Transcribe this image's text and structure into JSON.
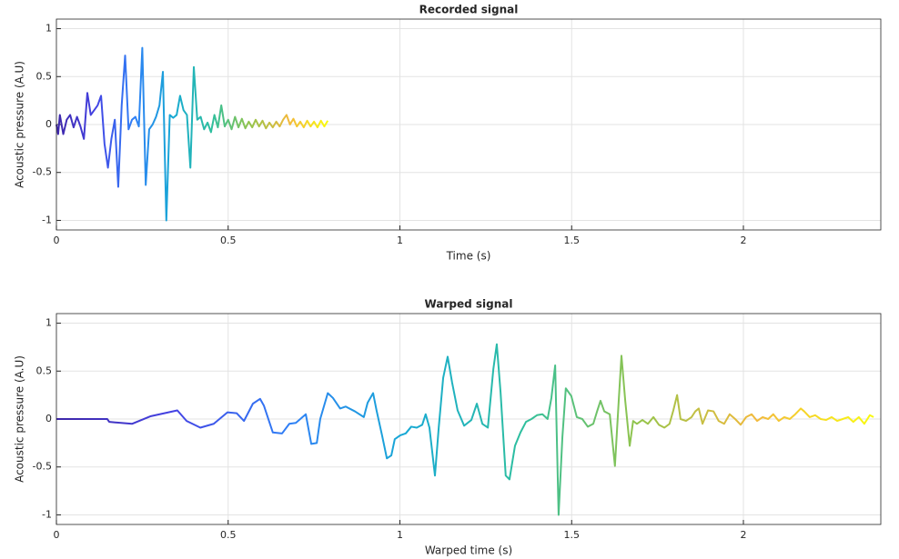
{
  "chart_data": [
    {
      "type": "line",
      "title": "Recorded signal",
      "xlabel": "Time (s)",
      "ylabel": "Acoustic pressure (A.U)",
      "xlim": [
        0,
        2.4
      ],
      "xticks": [
        0,
        0.5,
        1,
        1.5,
        2
      ],
      "ylim": [
        -1.1,
        1.1
      ],
      "yticks": [
        -1,
        -0.5,
        0,
        0.5,
        1
      ],
      "grid": true,
      "colormap": [
        "#3e26a8",
        "#4443e4",
        "#2f80f6",
        "#17a9d4",
        "#2ebf9e",
        "#95c44a",
        "#f2b93b",
        "#f9fb0e"
      ],
      "x": [
        0,
        0.005,
        0.01,
        0.02,
        0.03,
        0.04,
        0.05,
        0.06,
        0.07,
        0.08,
        0.09,
        0.1,
        0.11,
        0.12,
        0.13,
        0.14,
        0.15,
        0.16,
        0.17,
        0.18,
        0.19,
        0.2,
        0.21,
        0.22,
        0.23,
        0.24,
        0.25,
        0.26,
        0.27,
        0.28,
        0.29,
        0.3,
        0.31,
        0.32,
        0.33,
        0.34,
        0.35,
        0.36,
        0.37,
        0.38,
        0.39,
        0.4,
        0.41,
        0.42,
        0.43,
        0.44,
        0.45,
        0.46,
        0.47,
        0.48,
        0.49,
        0.5,
        0.51,
        0.52,
        0.53,
        0.54,
        0.55,
        0.56,
        0.57,
        0.58,
        0.59,
        0.6,
        0.61,
        0.62,
        0.63,
        0.64,
        0.65,
        0.66,
        0.67,
        0.68,
        0.69,
        0.7,
        0.71,
        0.72,
        0.73,
        0.74,
        0.75,
        0.76,
        0.77,
        0.78,
        0.79
      ],
      "values": [
        0,
        -0.1,
        0.1,
        -0.1,
        0.05,
        0.1,
        -0.03,
        0.08,
        -0.02,
        -0.15,
        0.33,
        0.1,
        0.15,
        0.2,
        0.3,
        -0.2,
        -0.45,
        -0.15,
        0.05,
        -0.65,
        0.2,
        0.72,
        -0.05,
        0.05,
        0.08,
        -0.02,
        0.8,
        -0.63,
        -0.05,
        0,
        0.08,
        0.2,
        0.55,
        -1,
        0.1,
        0.07,
        0.1,
        0.3,
        0.15,
        0.1,
        -0.45,
        0.6,
        0.05,
        0.08,
        -0.05,
        0.02,
        -0.08,
        0.1,
        -0.03,
        0.2,
        -0.02,
        0.05,
        -0.05,
        0.08,
        -0.03,
        0.06,
        -0.04,
        0.03,
        -0.03,
        0.05,
        -0.02,
        0.04,
        -0.04,
        0.02,
        -0.03,
        0.03,
        -0.02,
        0.05,
        0.1,
        0,
        0.06,
        -0.02,
        0.03,
        -0.03,
        0.04,
        -0.02,
        0.03,
        -0.03,
        0.04,
        -0.02,
        0.04
      ]
    },
    {
      "type": "line",
      "title": "Warped signal",
      "xlabel": "Warped time (s)",
      "ylabel": "Acoustic pressure (A.U)",
      "xlim": [
        0,
        2.4
      ],
      "xticks": [
        0,
        0.5,
        1,
        1.5,
        2
      ],
      "ylim": [
        -1.1,
        1.1
      ],
      "yticks": [
        -1,
        -0.5,
        0,
        0.5,
        1
      ],
      "grid": true,
      "colormap": [
        "#3e26a8",
        "#4443e4",
        "#2f80f6",
        "#17a9d4",
        "#2ebf9e",
        "#95c44a",
        "#f2b93b",
        "#f9fb0e"
      ],
      "x": [
        0,
        0.148,
        0.154,
        0.22,
        0.275,
        0.352,
        0.379,
        0.419,
        0.458,
        0.498,
        0.525,
        0.546,
        0.572,
        0.593,
        0.604,
        0.63,
        0.657,
        0.678,
        0.697,
        0.726,
        0.742,
        0.758,
        0.768,
        0.79,
        0.805,
        0.826,
        0.842,
        0.869,
        0.895,
        0.906,
        0.922,
        0.932,
        0.948,
        0.962,
        0.975,
        0.985,
        1.001,
        1.017,
        1.033,
        1.049,
        1.065,
        1.075,
        1.086,
        1.102,
        1.113,
        1.126,
        1.139,
        1.152,
        1.168,
        1.187,
        1.208,
        1.224,
        1.24,
        1.256,
        1.272,
        1.282,
        1.293,
        1.308,
        1.319,
        1.335,
        1.351,
        1.367,
        1.383,
        1.399,
        1.415,
        1.43,
        1.441,
        1.452,
        1.462,
        1.473,
        1.483,
        1.499,
        1.515,
        1.531,
        1.547,
        1.563,
        1.574,
        1.584,
        1.595,
        1.611,
        1.626,
        1.637,
        1.645,
        1.656,
        1.669,
        1.679,
        1.69,
        1.706,
        1.722,
        1.738,
        1.754,
        1.77,
        1.785,
        1.796,
        1.807,
        1.817,
        1.833,
        1.849,
        1.86,
        1.87,
        1.881,
        1.897,
        1.913,
        1.928,
        1.944,
        1.96,
        1.976,
        1.992,
        2.008,
        2.024,
        2.04,
        2.056,
        2.072,
        2.087,
        2.103,
        2.119,
        2.135,
        2.151,
        2.167,
        2.177,
        2.193,
        2.209,
        2.225,
        2.241,
        2.257,
        2.273,
        2.289,
        2.305,
        2.32,
        2.336,
        2.352,
        2.368,
        2.379
      ],
      "values": [
        0,
        0,
        -0.03,
        -0.05,
        0.03,
        0.09,
        -0.02,
        -0.09,
        -0.05,
        0.07,
        0.06,
        -0.02,
        0.16,
        0.21,
        0.14,
        -0.14,
        -0.15,
        -0.05,
        -0.04,
        0.05,
        -0.26,
        -0.25,
        0,
        0.27,
        0.22,
        0.11,
        0.13,
        0.08,
        0.02,
        0.17,
        0.27,
        0.09,
        -0.17,
        -0.41,
        -0.38,
        -0.21,
        -0.17,
        -0.15,
        -0.08,
        -0.09,
        -0.06,
        0.05,
        -0.09,
        -0.59,
        -0.09,
        0.43,
        0.65,
        0.38,
        0.09,
        -0.07,
        -0.01,
        0.16,
        -0.05,
        -0.09,
        0.52,
        0.78,
        0.28,
        -0.59,
        -0.63,
        -0.28,
        -0.14,
        -0.03,
        0,
        0.04,
        0.05,
        0,
        0.22,
        0.56,
        -1,
        -0.19,
        0.32,
        0.24,
        0.02,
        0,
        -0.08,
        -0.05,
        0.08,
        0.19,
        0.08,
        0.05,
        -0.49,
        0.19,
        0.66,
        0.19,
        -0.28,
        -0.02,
        -0.05,
        -0.01,
        -0.05,
        0.02,
        -0.06,
        -0.09,
        -0.05,
        0.09,
        0.25,
        0,
        -0.02,
        0.02,
        0.08,
        0.11,
        -0.05,
        0.09,
        0.08,
        -0.02,
        -0.05,
        0.05,
        0,
        -0.06,
        0.02,
        0.05,
        -0.02,
        0.02,
        0,
        0.05,
        -0.02,
        0.02,
        0,
        0.05,
        0.11,
        0.08,
        0.02,
        0.04,
        0,
        -0.01,
        0.02,
        -0.02,
        0,
        0.02,
        -0.03,
        0.02,
        -0.05,
        0.04,
        0.02
      ]
    }
  ]
}
